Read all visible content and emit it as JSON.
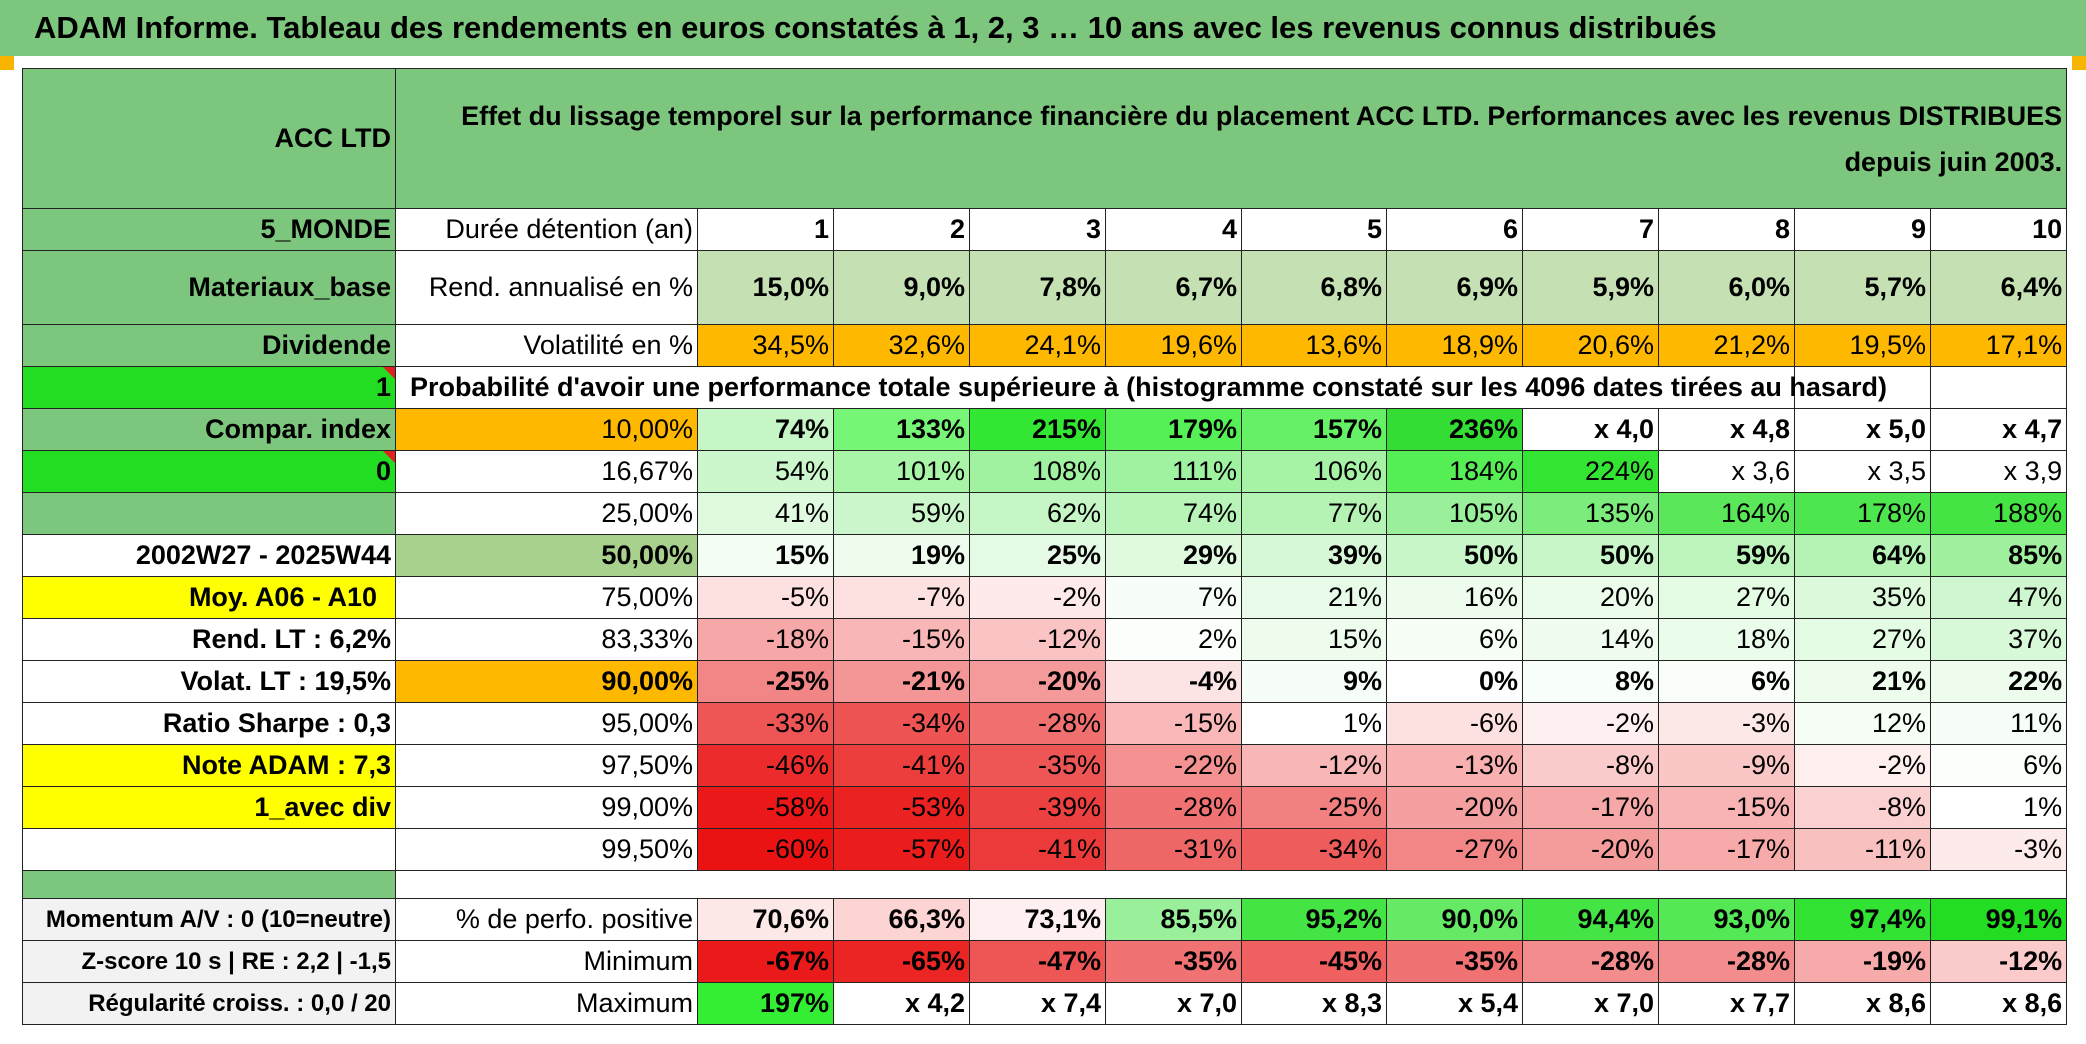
{
  "title": "ADAM Informe. Tableau des rendements en euros constatés à 1, 2, 3 … 10 ans avec les revenus connus distribués",
  "fund": {
    "name": "ACC LTD",
    "description": "Effet du lissage temporel sur la performance financière du placement ACC LTD. Performances avec les revenus DISTRIBUES depuis juin 2003."
  },
  "left": {
    "zone": "5_MONDE",
    "sector": "Materiaux_base",
    "dividend_label": "Dividende",
    "flag1": "1",
    "compar_label": "Compar. index",
    "flag2": "0",
    "period": "2002W27 - 2025W44",
    "moy": "Moy. A06 - A10",
    "rend_lt": "Rend. LT :    6,2%",
    "volat_lt": "Volat. LT :    19,5%",
    "sharpe": "Ratio Sharpe :    0,3",
    "note": "Note ADAM : 7,3",
    "avec_div": "1_avec div",
    "momentum": "Momentum A/V : 0 (10=neutre)",
    "zscore": "Z-score 10 s | RE : 2,2 | -1,5",
    "regularite": "Régularité croiss. : 0,0 / 20"
  },
  "header": {
    "duration_label": "Durée détention (an)",
    "years": [
      "1",
      "2",
      "3",
      "4",
      "5",
      "6",
      "7",
      "8",
      "9",
      "10"
    ]
  },
  "rend": {
    "label": "Rend. annualisé en %",
    "values": [
      "15,0%",
      "9,0%",
      "7,8%",
      "6,7%",
      "6,8%",
      "6,9%",
      "5,9%",
      "6,0%",
      "5,7%",
      "6,4%"
    ]
  },
  "vol": {
    "label": "Volatilité en %",
    "values": [
      "34,5%",
      "32,6%",
      "24,1%",
      "19,6%",
      "13,6%",
      "18,9%",
      "20,6%",
      "21,2%",
      "19,5%",
      "17,1%"
    ]
  },
  "prob_title": "Probabilité d'avoir une performance totale supérieure à (histogramme constaté sur les 4096 dates tirées au hasard)",
  "prob_rows": [
    {
      "p": "10,00%",
      "v": [
        "74%",
        "133%",
        "215%",
        "179%",
        "157%",
        "236%",
        "x 4,0",
        "x 4,8",
        "x 5,0",
        "x 4,7"
      ]
    },
    {
      "p": "16,67%",
      "v": [
        "54%",
        "101%",
        "108%",
        "111%",
        "106%",
        "184%",
        "224%",
        "x 3,6",
        "x 3,5",
        "x 3,9"
      ]
    },
    {
      "p": "25,00%",
      "v": [
        "41%",
        "59%",
        "62%",
        "74%",
        "77%",
        "105%",
        "135%",
        "164%",
        "178%",
        "188%"
      ]
    },
    {
      "p": "50,00%",
      "v": [
        "15%",
        "19%",
        "25%",
        "29%",
        "39%",
        "50%",
        "50%",
        "59%",
        "64%",
        "85%"
      ]
    },
    {
      "p": "75,00%",
      "v": [
        "-5%",
        "-7%",
        "-2%",
        "7%",
        "21%",
        "16%",
        "20%",
        "27%",
        "35%",
        "47%"
      ]
    },
    {
      "p": "83,33%",
      "v": [
        "-18%",
        "-15%",
        "-12%",
        "2%",
        "15%",
        "6%",
        "14%",
        "18%",
        "27%",
        "37%"
      ]
    },
    {
      "p": "90,00%",
      "v": [
        "-25%",
        "-21%",
        "-20%",
        "-4%",
        "9%",
        "0%",
        "8%",
        "6%",
        "21%",
        "22%"
      ]
    },
    {
      "p": "95,00%",
      "v": [
        "-33%",
        "-34%",
        "-28%",
        "-15%",
        "1%",
        "-6%",
        "-2%",
        "-3%",
        "12%",
        "11%"
      ]
    },
    {
      "p": "97,50%",
      "v": [
        "-46%",
        "-41%",
        "-35%",
        "-22%",
        "-12%",
        "-13%",
        "-8%",
        "-9%",
        "-2%",
        "6%"
      ]
    },
    {
      "p": "99,00%",
      "v": [
        "-58%",
        "-53%",
        "-39%",
        "-28%",
        "-25%",
        "-20%",
        "-17%",
        "-15%",
        "-8%",
        "1%"
      ]
    },
    {
      "p": "99,50%",
      "v": [
        "-60%",
        "-57%",
        "-41%",
        "-31%",
        "-34%",
        "-27%",
        "-20%",
        "-17%",
        "-11%",
        "-3%"
      ]
    }
  ],
  "pos": {
    "label": "% de perfo. positive",
    "values": [
      "70,6%",
      "66,3%",
      "73,1%",
      "85,5%",
      "95,2%",
      "90,0%",
      "94,4%",
      "93,0%",
      "97,4%",
      "99,1%"
    ]
  },
  "min": {
    "label": "Minimum",
    "values": [
      "-67%",
      "-65%",
      "-47%",
      "-35%",
      "-45%",
      "-35%",
      "-28%",
      "-28%",
      "-19%",
      "-12%"
    ]
  },
  "max": {
    "label": "Maximum",
    "values": [
      "197%",
      "x 4,2",
      "x 7,4",
      "x 7,0",
      "x 8,3",
      "x 5,4",
      "x 7,0",
      "x 7,7",
      "x 8,6",
      "x 8,6"
    ]
  },
  "colors": {
    "title_green": "#7dc67d",
    "yellow": "#ffff00",
    "orange": "#ffb800",
    "bright_green": "#22dd22",
    "red_text": "#e01b1b"
  }
}
